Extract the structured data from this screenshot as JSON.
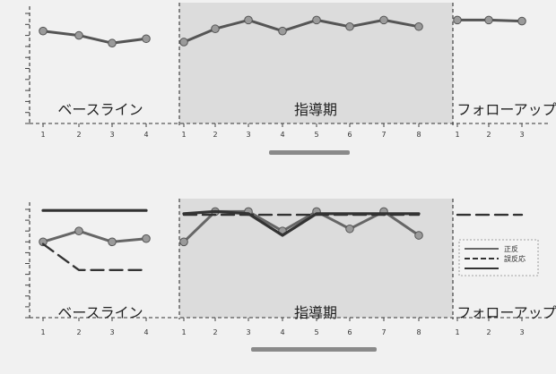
{
  "chart_data": [
    {
      "id": "chart-1",
      "type": "line",
      "title": "",
      "xlabel": "",
      "ylabel": "",
      "ylim": [
        0,
        100
      ],
      "grid": false,
      "phases": [
        {
          "label": "ベースライン",
          "x_ticks": [
            "1",
            "2",
            "3",
            "4"
          ],
          "shaded": false
        },
        {
          "label": "指導期",
          "x_ticks": [
            "1",
            "2",
            "3",
            "4",
            "5",
            "6",
            "7",
            "8"
          ],
          "shaded": true
        },
        {
          "label": "フォローアップ",
          "x_ticks": [
            "1",
            "2",
            "3"
          ],
          "shaded": false
        }
      ],
      "series": [
        {
          "style": "solid-markers",
          "color": "#555555",
          "values": [
            [
              84,
              80,
              73,
              77
            ],
            [
              74,
              86,
              94,
              84,
              94,
              88,
              94,
              88
            ],
            [
              94,
              94,
              93
            ]
          ]
        }
      ]
    },
    {
      "id": "chart-2",
      "type": "line",
      "title": "",
      "xlabel": "",
      "ylabel": "",
      "ylim": [
        0,
        100
      ],
      "grid": false,
      "legend": {
        "placement": "right",
        "entries": [
          "正反",
          "誤反応",
          ""
        ]
      },
      "phases": [
        {
          "label": "ベースライン",
          "x_ticks": [
            "1",
            "2",
            "3",
            "4"
          ],
          "shaded": false
        },
        {
          "label": "指導期",
          "x_ticks": [
            "1",
            "2",
            "3",
            "4",
            "5",
            "6",
            "7",
            "8"
          ],
          "shaded": true
        },
        {
          "label": "フォローアップ",
          "x_ticks": [
            "1",
            "2",
            "3"
          ],
          "shaded": false
        }
      ],
      "series": [
        {
          "name": "正反",
          "style": "solid-markers",
          "color": "#666666",
          "values": [
            [
              70,
              80,
              70,
              73
            ],
            [
              70,
              98,
              98,
              80,
              98,
              82,
              98,
              76
            ],
            null
          ]
        },
        {
          "name": "誤反応",
          "style": "dash",
          "color": "#333333",
          "values": [
            [
              68,
              44,
              44,
              44
            ],
            [
              95,
              95,
              95,
              95,
              95,
              95,
              95,
              95
            ],
            [
              95,
              95,
              95
            ]
          ]
        },
        {
          "style": "solid",
          "color": "#333333",
          "values": [
            [
              99,
              99,
              99,
              99
            ],
            [
              96,
              98,
              96,
              76,
              96,
              96,
              96,
              96
            ],
            null
          ]
        }
      ]
    }
  ]
}
